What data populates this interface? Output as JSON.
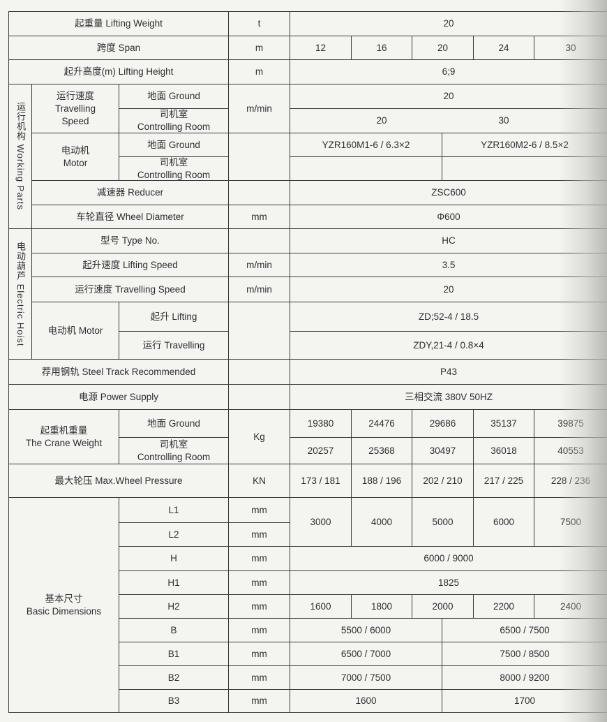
{
  "lifting_weight": {
    "label": "起重量  Lifting Weight",
    "unit": "t",
    "value": "20"
  },
  "span": {
    "label": "跨度  Span",
    "unit": "m",
    "values": [
      "12",
      "16",
      "20",
      "24",
      "30"
    ]
  },
  "lifting_height": {
    "label": "起升高度(m)  Lifting Height",
    "unit": "m",
    "value": "6;9"
  },
  "working_parts": {
    "title": "运行机构  Working Parts",
    "travelling_speed": {
      "label_cn": "运行速度",
      "label_en1": "Travelling",
      "label_en2": "Speed",
      "unit": "m/min",
      "ground": {
        "label": "地面 Ground",
        "value": "20"
      },
      "room": {
        "label_cn": "司机室",
        "label_en": "Controlling Room",
        "values": [
          "20",
          "30"
        ]
      }
    },
    "motor": {
      "label_cn": "电动机",
      "label_en": "Motor",
      "ground": {
        "label": "地面 Ground",
        "values": [
          "YZR160M1-6 / 6.3×2",
          "YZR160M2-6 / 8.5×2"
        ]
      },
      "room": {
        "label_cn": "司机室",
        "label_en": "Controlling Room"
      }
    },
    "reducer": {
      "label": "减速器 Reducer",
      "value": "ZSC600"
    },
    "wheel_diameter": {
      "label": "车轮直径 Wheel Diameter",
      "unit": "mm",
      "value": "Φ600"
    }
  },
  "electric_hoist": {
    "title": "电动葫芦  Electric Hoist",
    "type_no": {
      "label": "型号 Type No.",
      "value": "HC"
    },
    "lifting_speed": {
      "label": "起升速度 Lifting Speed",
      "unit": "m/min",
      "value": "3.5"
    },
    "travelling_speed": {
      "label": "运行速度 Travelling Speed",
      "unit": "m/min",
      "value": "20"
    },
    "motor": {
      "label": "电动机 Motor",
      "lifting": {
        "label": "起升 Lifting",
        "value": "ZD;52-4 / 18.5"
      },
      "travelling": {
        "label": "运行 Travelling",
        "value": "ZDY,21-4 / 0.8×4"
      }
    }
  },
  "steel_track": {
    "label": "荐用钢轨 Steel Track Recommended",
    "value": "P43"
  },
  "power_supply": {
    "label": "电源 Power Supply",
    "value": "三相交流 380V  50HZ"
  },
  "crane_weight": {
    "label_cn": "起重机重量",
    "label_en": "The Crane Weight",
    "unit": "Kg",
    "ground": {
      "label": "地面 Ground",
      "values": [
        "19380",
        "24476",
        "29686",
        "35137",
        "39875"
      ]
    },
    "room": {
      "label_cn": "司机室",
      "label_en": "Controlling Room",
      "values": [
        "20257",
        "25368",
        "30497",
        "36018",
        "40553"
      ]
    }
  },
  "wheel_pressure": {
    "label": "最大轮压 Max.Wheel Pressure",
    "unit": "KN",
    "values": [
      "173 / 181",
      "188 / 196",
      "202 / 210",
      "217 / 225",
      "228 / 236"
    ]
  },
  "dimensions": {
    "label_cn": "基本尺寸",
    "label_en": "Basic Dimensions",
    "unit": "mm",
    "L1": "L1",
    "L2": "L2",
    "L_values": [
      "3000",
      "4000",
      "5000",
      "6000",
      "7500"
    ],
    "H": {
      "label": "H",
      "value": "6000 / 9000"
    },
    "H1": {
      "label": "H1",
      "value": "1825"
    },
    "H2": {
      "label": "H2",
      "values": [
        "1600",
        "1800",
        "2000",
        "2200",
        "2400"
      ]
    },
    "B": {
      "label": "B",
      "values": [
        "5500 / 6000",
        "6500 / 7500"
      ]
    },
    "B1": {
      "label": "B1",
      "values": [
        "6500 / 7000",
        "7500 / 8500"
      ]
    },
    "B2": {
      "label": "B2",
      "values": [
        "7000 / 7500",
        "8000 / 9200"
      ]
    },
    "B3": {
      "label": "B3",
      "values": [
        "1600",
        "1700"
      ]
    }
  }
}
